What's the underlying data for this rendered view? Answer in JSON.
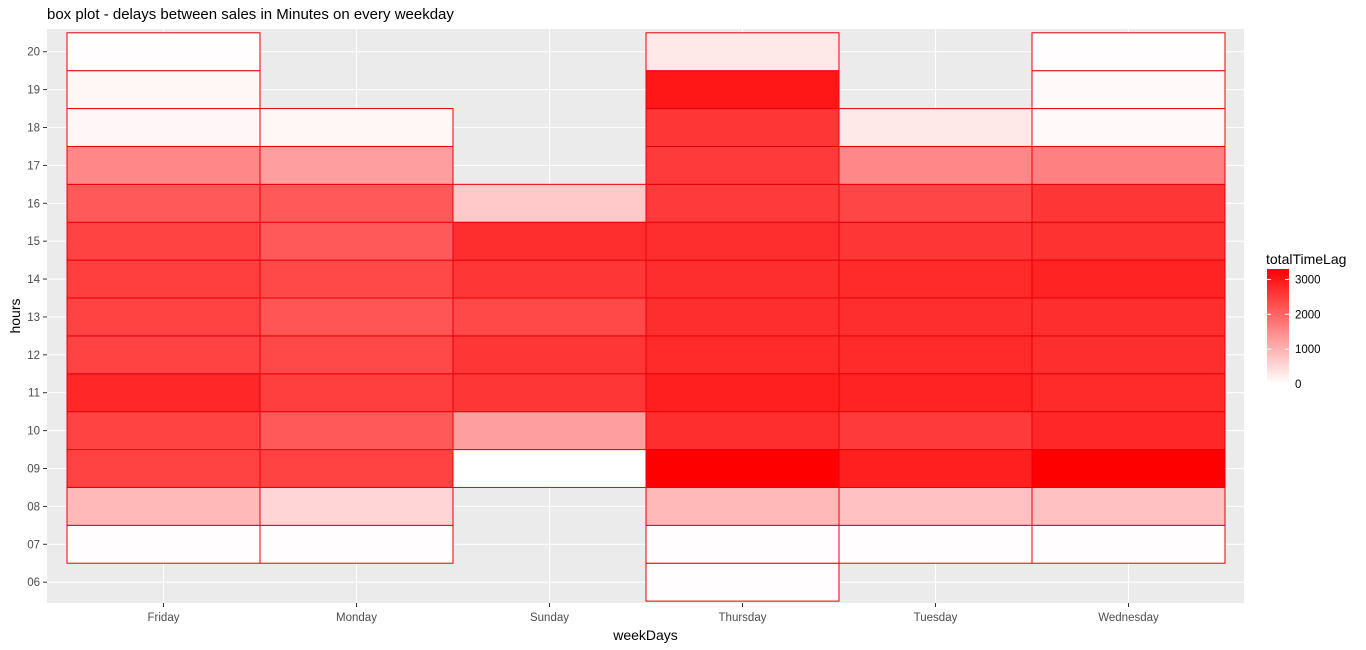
{
  "chart_data": {
    "type": "heatmap",
    "title": "box plot - delays between sales in Minutes on every weekday",
    "xlabel": "weekDays",
    "ylabel": "hours",
    "x_categories": [
      "Friday",
      "Monday",
      "Sunday",
      "Thursday",
      "Tuesday",
      "Wednesday"
    ],
    "y_ticks": [
      "06",
      "07",
      "08",
      "09",
      "10",
      "11",
      "12",
      "13",
      "14",
      "15",
      "16",
      "17",
      "18",
      "19",
      "20"
    ],
    "ylim": [
      5.45,
      20.6
    ],
    "grid": true,
    "legend": {
      "title": "totalTimeLag",
      "placement": "right",
      "ticks": [
        0,
        1000,
        2000,
        3000
      ],
      "range": [
        0,
        3300
      ],
      "low_color": "#ffffff",
      "high_color": "#ff0000"
    },
    "border_color": "#e8000b",
    "cells": [
      {
        "x": "Friday",
        "y": 7,
        "value": 20
      },
      {
        "x": "Friday",
        "y": 8,
        "value": 900
      },
      {
        "x": "Friday",
        "y": 9,
        "value": 2450
      },
      {
        "x": "Friday",
        "y": 10,
        "value": 2450
      },
      {
        "x": "Friday",
        "y": 11,
        "value": 2800
      },
      {
        "x": "Friday",
        "y": 12,
        "value": 2450
      },
      {
        "x": "Friday",
        "y": 13,
        "value": 2450
      },
      {
        "x": "Friday",
        "y": 14,
        "value": 2500
      },
      {
        "x": "Friday",
        "y": 15,
        "value": 2450
      },
      {
        "x": "Friday",
        "y": 16,
        "value": 2150
      },
      {
        "x": "Friday",
        "y": 17,
        "value": 1550
      },
      {
        "x": "Friday",
        "y": 18,
        "value": 100
      },
      {
        "x": "Friday",
        "y": 19,
        "value": 120
      },
      {
        "x": "Friday",
        "y": 20,
        "value": 20
      },
      {
        "x": "Monday",
        "y": 7,
        "value": 20
      },
      {
        "x": "Monday",
        "y": 8,
        "value": 550
      },
      {
        "x": "Monday",
        "y": 9,
        "value": 2450
      },
      {
        "x": "Monday",
        "y": 10,
        "value": 2150
      },
      {
        "x": "Monday",
        "y": 11,
        "value": 2500
      },
      {
        "x": "Monday",
        "y": 12,
        "value": 2350
      },
      {
        "x": "Monday",
        "y": 13,
        "value": 2200
      },
      {
        "x": "Monday",
        "y": 14,
        "value": 2350
      },
      {
        "x": "Monday",
        "y": 15,
        "value": 2150
      },
      {
        "x": "Monday",
        "y": 16,
        "value": 2150
      },
      {
        "x": "Monday",
        "y": 17,
        "value": 1250
      },
      {
        "x": "Monday",
        "y": 18,
        "value": 120
      },
      {
        "x": "Sunday",
        "y": 9,
        "value": 0
      },
      {
        "x": "Sunday",
        "y": 10,
        "value": 1250
      },
      {
        "x": "Sunday",
        "y": 11,
        "value": 2600
      },
      {
        "x": "Sunday",
        "y": 12,
        "value": 2600
      },
      {
        "x": "Sunday",
        "y": 13,
        "value": 2350
      },
      {
        "x": "Sunday",
        "y": 14,
        "value": 2600
      },
      {
        "x": "Sunday",
        "y": 15,
        "value": 2700
      },
      {
        "x": "Sunday",
        "y": 16,
        "value": 700
      },
      {
        "x": "Thursday",
        "y": 6,
        "value": 20
      },
      {
        "x": "Thursday",
        "y": 7,
        "value": 20
      },
      {
        "x": "Thursday",
        "y": 8,
        "value": 900
      },
      {
        "x": "Thursday",
        "y": 9,
        "value": 3300
      },
      {
        "x": "Thursday",
        "y": 10,
        "value": 2700
      },
      {
        "x": "Thursday",
        "y": 11,
        "value": 2900
      },
      {
        "x": "Thursday",
        "y": 12,
        "value": 2750
      },
      {
        "x": "Thursday",
        "y": 13,
        "value": 2700
      },
      {
        "x": "Thursday",
        "y": 14,
        "value": 2700
      },
      {
        "x": "Thursday",
        "y": 15,
        "value": 2700
      },
      {
        "x": "Thursday",
        "y": 16,
        "value": 2550
      },
      {
        "x": "Thursday",
        "y": 17,
        "value": 2550
      },
      {
        "x": "Thursday",
        "y": 18,
        "value": 2600
      },
      {
        "x": "Thursday",
        "y": 19,
        "value": 3000
      },
      {
        "x": "Thursday",
        "y": 20,
        "value": 300
      },
      {
        "x": "Tuesday",
        "y": 7,
        "value": 20
      },
      {
        "x": "Tuesday",
        "y": 8,
        "value": 800
      },
      {
        "x": "Tuesday",
        "y": 9,
        "value": 2900
      },
      {
        "x": "Tuesday",
        "y": 10,
        "value": 2550
      },
      {
        "x": "Tuesday",
        "y": 11,
        "value": 2850
      },
      {
        "x": "Tuesday",
        "y": 12,
        "value": 2750
      },
      {
        "x": "Tuesday",
        "y": 13,
        "value": 2700
      },
      {
        "x": "Tuesday",
        "y": 14,
        "value": 2750
      },
      {
        "x": "Tuesday",
        "y": 15,
        "value": 2600
      },
      {
        "x": "Tuesday",
        "y": 16,
        "value": 2400
      },
      {
        "x": "Tuesday",
        "y": 17,
        "value": 1550
      },
      {
        "x": "Tuesday",
        "y": 18,
        "value": 300
      },
      {
        "x": "Wednesday",
        "y": 7,
        "value": 20
      },
      {
        "x": "Wednesday",
        "y": 8,
        "value": 800
      },
      {
        "x": "Wednesday",
        "y": 9,
        "value": 3300
      },
      {
        "x": "Wednesday",
        "y": 10,
        "value": 2800
      },
      {
        "x": "Wednesday",
        "y": 11,
        "value": 2750
      },
      {
        "x": "Wednesday",
        "y": 12,
        "value": 2700
      },
      {
        "x": "Wednesday",
        "y": 13,
        "value": 2700
      },
      {
        "x": "Wednesday",
        "y": 14,
        "value": 2850
      },
      {
        "x": "Wednesday",
        "y": 15,
        "value": 2650
      },
      {
        "x": "Wednesday",
        "y": 16,
        "value": 2600
      },
      {
        "x": "Wednesday",
        "y": 17,
        "value": 1650
      },
      {
        "x": "Wednesday",
        "y": 18,
        "value": 80
      },
      {
        "x": "Wednesday",
        "y": 19,
        "value": 80
      },
      {
        "x": "Wednesday",
        "y": 20,
        "value": 20
      }
    ]
  }
}
